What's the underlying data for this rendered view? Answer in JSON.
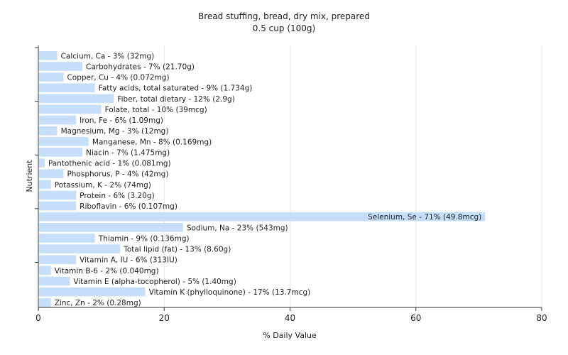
{
  "chart_data": {
    "type": "bar",
    "orientation": "horizontal",
    "title": "Bread stuffing, bread, dry mix, prepared",
    "subtitle": "0.5 cup (100g)",
    "xlabel": "% Daily Value",
    "ylabel": "Nutrient",
    "xlim": [
      0,
      80
    ],
    "xticks": [
      "0",
      "20",
      "40",
      "60",
      "80"
    ],
    "grid": true,
    "bar_color": "#c6defa",
    "categories": [
      "Calcium, Ca",
      "Carbohydrates",
      "Copper, Cu",
      "Fatty acids, total saturated",
      "Fiber, total dietary",
      "Folate, total",
      "Iron, Fe",
      "Magnesium, Mg",
      "Manganese, Mn",
      "Niacin",
      "Pantothenic acid",
      "Phosphorus, P",
      "Potassium, K",
      "Protein",
      "Riboflavin",
      "Selenium, Se",
      "Sodium, Na",
      "Thiamin",
      "Total lipid (fat)",
      "Vitamin A, IU",
      "Vitamin B-6",
      "Vitamin E (alpha-tocopherol)",
      "Vitamin K (phylloquinone)",
      "Zinc, Zn"
    ],
    "values": [
      3,
      7,
      4,
      9,
      12,
      10,
      6,
      3,
      8,
      7,
      1,
      4,
      2,
      6,
      6,
      71,
      23,
      9,
      13,
      6,
      2,
      5,
      17,
      2
    ],
    "labels": [
      "Calcium, Ca - 3% (32mg)",
      "Carbohydrates - 7% (21.70g)",
      "Copper, Cu - 4% (0.072mg)",
      "Fatty acids, total saturated - 9% (1.734g)",
      "Fiber, total dietary - 12% (2.9g)",
      "Folate, total - 10% (39mcg)",
      "Iron, Fe - 6% (1.09mg)",
      "Magnesium, Mg - 3% (12mg)",
      "Manganese, Mn - 8% (0.169mg)",
      "Niacin - 7% (1.475mg)",
      "Pantothenic acid - 1% (0.081mg)",
      "Phosphorus, P - 4% (42mg)",
      "Potassium, K - 2% (74mg)",
      "Protein - 6% (3.20g)",
      "Riboflavin - 6% (0.107mg)",
      "Selenium, Se - 71% (49.8mcg)",
      "Sodium, Na - 23% (543mg)",
      "Thiamin - 9% (0.136mg)",
      "Total lipid (fat) - 13% (8.60g)",
      "Vitamin A, IU - 6% (313IU)",
      "Vitamin B-6 - 2% (0.040mg)",
      "Vitamin E (alpha-tocopherol) - 5% (1.40mg)",
      "Vitamin K (phylloquinone) - 17% (13.7mcg)",
      "Zinc, Zn - 2% (0.28mg)"
    ]
  }
}
